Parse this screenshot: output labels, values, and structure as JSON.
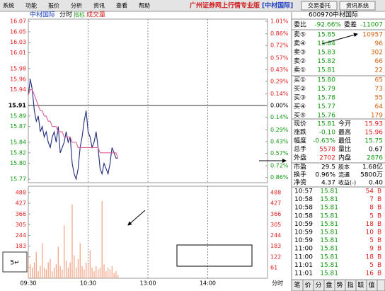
{
  "menu": [
    "系统",
    "功能",
    "报价",
    "分析",
    "资讯",
    "查看",
    "帮助"
  ],
  "title": "广州证券网上行情专业版",
  "title_stock": "[中材国际]",
  "buttons": [
    "交易委托",
    "资讯系统"
  ],
  "chart_data": {
    "type": "line",
    "title": "中材国际",
    "tabs": [
      "分时",
      "指标",
      "成交量"
    ],
    "series": [
      {
        "color": "#1f2a7a",
        "values": [
          15.93,
          15.96,
          15.94,
          15.9,
          15.88,
          15.89,
          15.86,
          15.87,
          15.85,
          15.86,
          15.84,
          15.83,
          15.85,
          15.86,
          15.84,
          15.87,
          15.82,
          15.83,
          15.84,
          15.86,
          15.84,
          15.85,
          15.8,
          15.78,
          15.77,
          15.79,
          15.83,
          15.85,
          15.88,
          15.9,
          15.86,
          15.85,
          15.83,
          15.84,
          15.86,
          15.83,
          15.79,
          15.78,
          15.8,
          15.79,
          15.78,
          15.8,
          15.83,
          15.82,
          15.81,
          15.81
        ]
      },
      {
        "color": "#e0609a",
        "values": [
          15.93,
          15.94,
          15.94,
          15.93,
          15.92,
          15.91,
          15.9,
          15.9,
          15.89,
          15.89,
          15.88,
          15.88,
          15.87,
          15.87,
          15.87,
          15.86,
          15.86,
          15.86,
          15.85,
          15.85,
          15.85,
          15.85,
          15.84,
          15.84,
          15.84,
          15.83,
          15.83,
          15.83,
          15.83,
          15.83,
          15.83,
          15.83,
          15.83,
          15.83,
          15.83,
          15.83,
          15.82,
          15.82,
          15.82,
          15.82,
          15.82,
          15.82,
          15.82,
          15.82,
          15.82,
          15.81
        ]
      }
    ],
    "ylim": [
      15.77,
      16.07
    ],
    "yticks": [
      16.07,
      16.05,
      16.03,
      16.01,
      15.98,
      15.96,
      15.94,
      15.91,
      15.89,
      15.87,
      15.84,
      15.82,
      {
        "value": 15.8,
        "label": "15.80"
      },
      15.77
    ],
    "y2lim": [
      -0.88,
      1.01
    ],
    "y2ticks": [
      {
        "value": 1.01,
        "label": "1.01%"
      },
      {
        "value": 0.86,
        "label": "0.86%"
      },
      {
        "value": 0.72,
        "label": "0.72%"
      },
      {
        "value": 0.57,
        "label": "0.57%"
      },
      {
        "value": 0.43,
        "label": "0.43%"
      },
      {
        "value": 0.29,
        "label": "0.29%"
      },
      {
        "value": 0.14,
        "label": "0.14%"
      },
      {
        "value": 0,
        "label": "0.00%"
      },
      {
        "value": -0.14,
        "label": "0.14%"
      },
      {
        "value": -0.29,
        "label": "0.29%"
      },
      {
        "value": -0.43,
        "label": "0.43%"
      },
      {
        "value": -0.57,
        "label": "0.57%"
      },
      {
        "value": -0.72,
        "label": "0.72%"
      },
      {
        "value": -0.86,
        "label": "0.86%"
      }
    ],
    "volume": {
      "color": "#f0a080",
      "values": [
        120,
        80,
        60,
        90,
        150,
        40,
        70,
        200,
        60,
        50,
        90,
        110,
        40,
        60,
        80,
        180,
        70,
        50,
        300,
        100,
        60,
        90,
        420,
        130,
        60,
        110,
        200,
        70,
        50,
        90,
        80,
        160,
        60,
        40,
        70,
        50,
        60,
        440,
        80,
        40,
        60,
        50,
        70,
        30,
        40,
        20
      ],
      "ylim": [
        0,
        488
      ],
      "yticks": [
        488,
        427,
        366,
        305,
        244,
        183,
        122,
        61
      ]
    },
    "xtick_labels": [
      "09:30",
      "10:30",
      "13:00",
      "14:00"
    ],
    "period_label": "分时",
    "annotation": "5↵"
  },
  "quote": {
    "code": "600970",
    "name": "中材国际",
    "weibi": [
      "委比",
      "-92.66%",
      "委差",
      "-11007"
    ],
    "asks": [
      [
        "卖⑤",
        "15.85",
        "10957"
      ],
      [
        "卖④",
        "15.84",
        "96"
      ],
      [
        "卖③",
        "15.83",
        "302"
      ],
      [
        "卖②",
        "15.82",
        "66"
      ],
      [
        "卖①",
        "15.81",
        "22"
      ]
    ],
    "bids": [
      [
        "买①",
        "15.80",
        "65"
      ],
      [
        "买②",
        "15.79",
        "73"
      ],
      [
        "买③",
        "15.78",
        "55"
      ],
      [
        "买④",
        "15.77",
        "64"
      ],
      [
        "买⑤",
        "15.76",
        "179"
      ]
    ],
    "stats": [
      [
        "现价",
        "15.81",
        "今开",
        "15.93"
      ],
      [
        "涨跌",
        "-0.10",
        "最高",
        "15.96"
      ],
      [
        "幅度",
        "-0.63%",
        "最低",
        "15.75"
      ],
      [
        "总手",
        "5578",
        "量比",
        "0.67"
      ],
      [
        "外盘",
        "2702",
        "内盘",
        "2876"
      ]
    ],
    "fund": [
      [
        "市盈",
        "29.5",
        "股本",
        "1.68亿"
      ],
      [
        "换手",
        "0.96%",
        "流通",
        "5800万"
      ],
      [
        "净资",
        "4.37",
        "收益(-)",
        "0.40"
      ]
    ],
    "ticks": [
      [
        "10:57",
        "15.81",
        "54",
        "B"
      ],
      [
        "10:58",
        "15.81",
        "7",
        "B"
      ],
      [
        "10:58",
        "15.81",
        "8",
        "B"
      ],
      [
        "10:58",
        "15.81",
        "5",
        "B"
      ],
      [
        "10:59",
        "15.81",
        "18",
        "B"
      ],
      [
        "10:59",
        "15.81",
        "10",
        "B"
      ],
      [
        "10:59",
        "15.81",
        "5",
        "B"
      ],
      [
        "11:00",
        "15.81",
        "9",
        "B"
      ],
      [
        "11:00",
        "15.81",
        "18",
        "B"
      ],
      [
        "11:01",
        "15.81",
        "5",
        "B"
      ],
      [
        "11:01",
        "15.81",
        "16",
        "B"
      ]
    ],
    "tabs": [
      "笔",
      "价",
      "分",
      "盘",
      "势",
      "指",
      "联",
      "值"
    ]
  }
}
